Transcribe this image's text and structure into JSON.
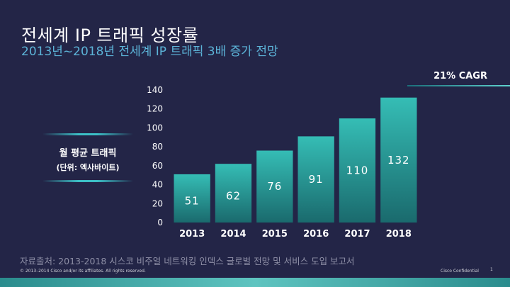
{
  "slide": {
    "title": "전세계 IP 트래픽 성장률",
    "subtitle": "2013년~2018년 전세계 IP 트래픽 3배 증가 전망",
    "cagr": "21% CAGR",
    "y_legend_line1": "월 평균 트래픽",
    "y_legend_line2": "(단위: 엑사바이트)",
    "source": "자료출처: 2013-2018 시스코 비주얼 네트워킹 인덱스 글로벌 전망 및 서비스 도입 보고서",
    "copyright": "© 2013–2014 Cisco and/or its affiliates. All rights reserved.",
    "confidential": "Cisco Confidential",
    "page_number": "1"
  },
  "colors": {
    "background": "#232547",
    "bar_top": "#2fb8b0",
    "bar_bottom": "#1b6d6f",
    "text": "#ffffff",
    "subtitle": "#5cb4d8"
  },
  "chart_data": {
    "type": "bar",
    "categories": [
      "2013",
      "2014",
      "2015",
      "2016",
      "2017",
      "2018"
    ],
    "values": [
      51,
      62,
      76,
      91,
      110,
      132
    ],
    "ylim": [
      0,
      140
    ],
    "yticks": [
      0,
      20,
      40,
      60,
      80,
      100,
      120,
      140
    ],
    "ylabel": "월 평균 트래픽 (단위: 엑사바이트)",
    "grid": false,
    "data_labels": true
  }
}
